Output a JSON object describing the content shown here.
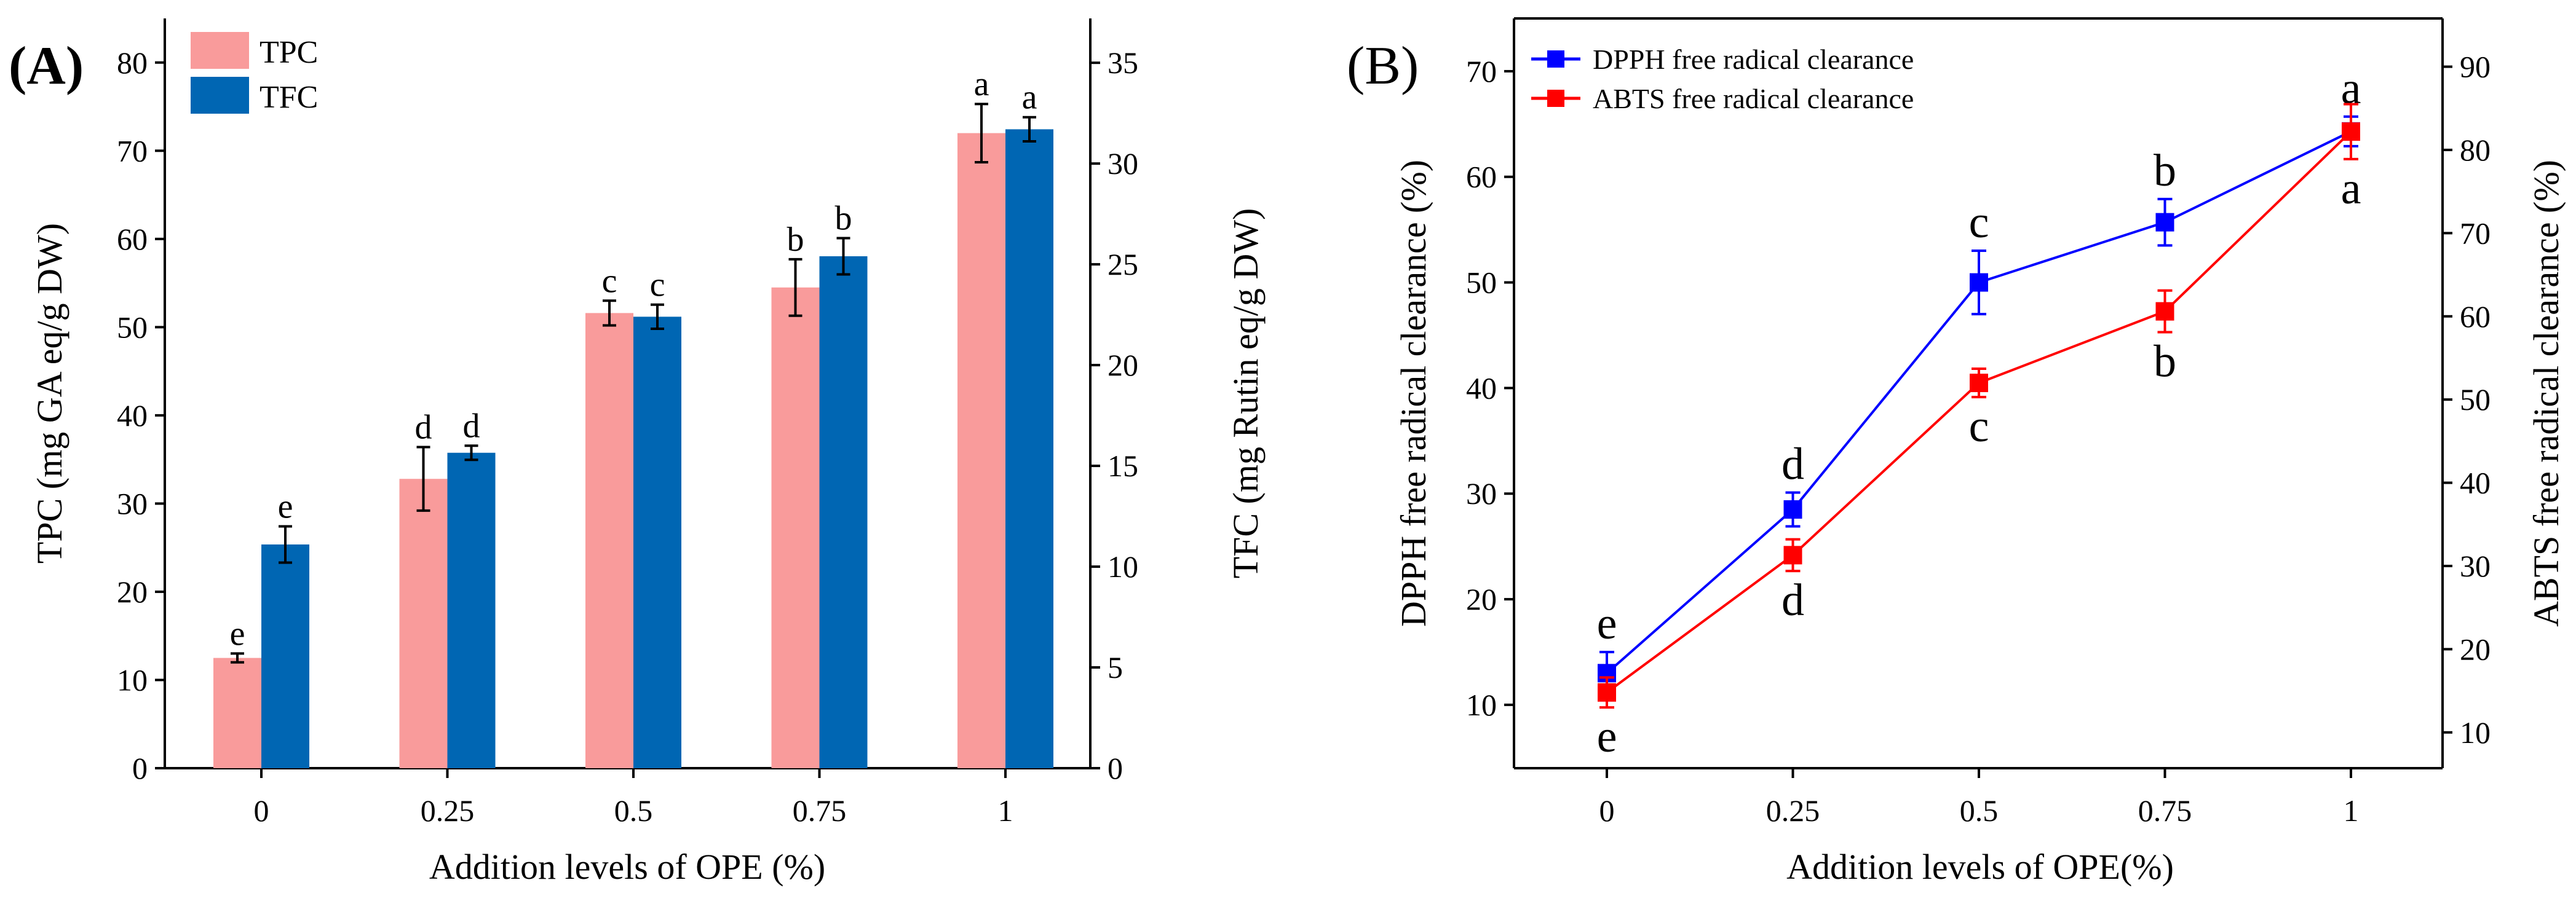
{
  "chart_data": [
    {
      "panel": "(A)",
      "type": "bar",
      "categories": [
        "0",
        "0.25",
        "0.5",
        "0.75",
        "1"
      ],
      "xlabel": "Addition levels of OPE (%)",
      "ylabel": "TPC (mg GA eq/g DW)",
      "y2label": "TFC (mg Rutin eq/g DW)",
      "ylim": [
        0,
        85
      ],
      "y2lim": [
        0,
        37.2
      ],
      "yticks": [
        0,
        10,
        20,
        30,
        40,
        50,
        60,
        70,
        80
      ],
      "y2ticks": [
        0,
        5,
        10,
        15,
        20,
        25,
        30,
        35
      ],
      "legend_position": "top-left",
      "series": [
        {
          "name": "TPC",
          "axis": "left",
          "color": "#f99b9b",
          "values": [
            12.5,
            32.8,
            51.6,
            54.5,
            72.0
          ],
          "errors": [
            0.5,
            3.6,
            1.4,
            3.2,
            3.3
          ],
          "letters": [
            "e",
            "d",
            "c",
            "b",
            "a"
          ]
        },
        {
          "name": "TFC",
          "axis": "right",
          "color": "#0066b3",
          "values": [
            11.1,
            15.65,
            22.4,
            25.4,
            31.7
          ],
          "errors": [
            0.9,
            0.35,
            0.6,
            0.9,
            0.6
          ],
          "letters": [
            "e",
            "d",
            "c",
            "b",
            "a"
          ]
        }
      ]
    },
    {
      "panel": "(B)",
      "type": "line",
      "x": [
        "0",
        "0.25",
        "0.5",
        "0.75",
        "1"
      ],
      "xlabel": "Addition levels of OPE(%)",
      "ylabel": "DPPH free radical clearance (%)",
      "y2label": "ABTS free radical clearance (%)",
      "ylim": [
        4,
        75
      ],
      "y2lim": [
        5.7,
        95.8
      ],
      "yticks": [
        10,
        20,
        30,
        40,
        50,
        60,
        70
      ],
      "y2ticks": [
        10,
        20,
        30,
        40,
        50,
        60,
        70,
        80,
        90
      ],
      "legend_position": "top-left",
      "series": [
        {
          "name": "DPPH free radical clearance",
          "axis": "left",
          "color": "#0000ff",
          "values": [
            13.0,
            28.5,
            50.0,
            55.7,
            64.3
          ],
          "errors": [
            2.0,
            1.6,
            3.0,
            2.2,
            1.4
          ],
          "letters": [
            "e",
            "d",
            "c",
            "b",
            "a"
          ],
          "letter_side": "above"
        },
        {
          "name": "ABTS free radical clearance",
          "axis": "right",
          "color": "#ff0000",
          "values": [
            14.8,
            31.3,
            52.0,
            60.6,
            82.2
          ],
          "errors": [
            1.8,
            1.9,
            1.7,
            2.5,
            3.3
          ],
          "letters": [
            "e",
            "d",
            "c",
            "b",
            "a"
          ],
          "letter_side": "below"
        }
      ]
    }
  ]
}
